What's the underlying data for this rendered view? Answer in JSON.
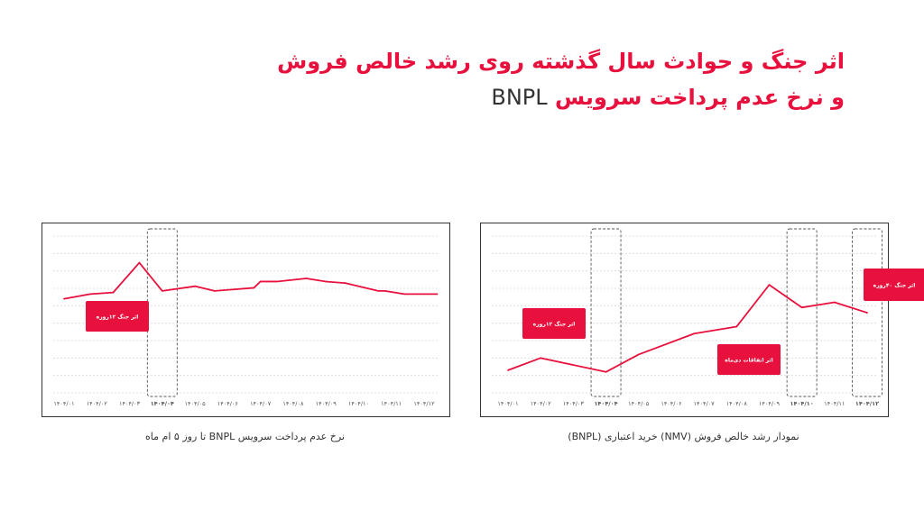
{
  "title": {
    "line1": "اثر جنگ و حوادث سال گذشته روی رشد خالص فروش",
    "line2_fa": "و نرخ عدم پرداخت سرویس",
    "line2_latin": "BNPL"
  },
  "colors": {
    "accent": "#e8103c",
    "grid": "#d9d9d9",
    "text": "#333333"
  },
  "chart_data": [
    {
      "type": "line",
      "caption": "نرخ عدم پرداخت سرویس BNPL تا روز ۵ ام ماه",
      "categories": [
        "۱۴۰۴/۰۱",
        "۱۴۰۴/۰۲",
        "۱۴۰۴/۰۳",
        "۱۴۰۴/۰۴",
        "۱۴۰۴/۰۵",
        "۱۴۰۴/۰۶",
        "۱۴۰۴/۰۷",
        "۱۴۰۴/۰۸",
        "۱۴۰۴/۰۹",
        "۱۴۰۴/۱۰",
        "۱۴۰۴/۱۱",
        "۱۴۰۴/۱۲"
      ],
      "x": [
        0,
        0.8,
        1.5,
        2.3,
        3.0,
        4.0,
        4.6,
        5.8,
        6.0,
        6.5,
        7.4,
        8.0,
        8.6,
        9.6,
        9.8,
        10.4,
        11.4
      ],
      "values": [
        6.0,
        6.3,
        6.4,
        8.3,
        6.5,
        6.8,
        6.5,
        6.7,
        7.1,
        7.1,
        7.3,
        7.1,
        7.0,
        6.5,
        6.5,
        6.3,
        6.3
      ],
      "bold_ticks": [
        3
      ],
      "highlights": [
        3
      ],
      "annotations": [
        {
          "label": "اثر جنگ ۱۲روزه"
        }
      ]
    },
    {
      "type": "line",
      "caption": "نمودار رشد خالص فروش (NMV) خرید اعتباری (BNPL)",
      "categories": [
        "۱۴۰۴/۰۱",
        "۱۴۰۴/۰۲",
        "۱۴۰۴/۰۳",
        "۱۴۰۴/۰۴",
        "۱۴۰۴/۰۵",
        "۱۴۰۴/۰۶",
        "۱۴۰۴/۰۷",
        "۱۴۰۴/۰۸",
        "۱۴۰۴/۰۹",
        "۱۴۰۴/۱۰",
        "۱۴۰۴/۱۱",
        "۱۴۰۴/۱۲"
      ],
      "x": [
        0,
        1,
        3,
        4,
        5.7,
        7.0,
        8.0,
        9.0,
        10.0,
        11.0
      ],
      "values": [
        1.3,
        2.0,
        1.2,
        2.2,
        3.4,
        3.8,
        6.2,
        4.9,
        5.2,
        4.6
      ],
      "bold_ticks": [
        3,
        9,
        11
      ],
      "highlights": [
        3,
        9,
        11
      ],
      "annotations": [
        {
          "label": "اثر جنگ ۱۲روزه"
        },
        {
          "label": "اثر اتفاقات دی‌ماه"
        },
        {
          "label": "اثر جنگ ۴۰روزه"
        }
      ]
    }
  ]
}
